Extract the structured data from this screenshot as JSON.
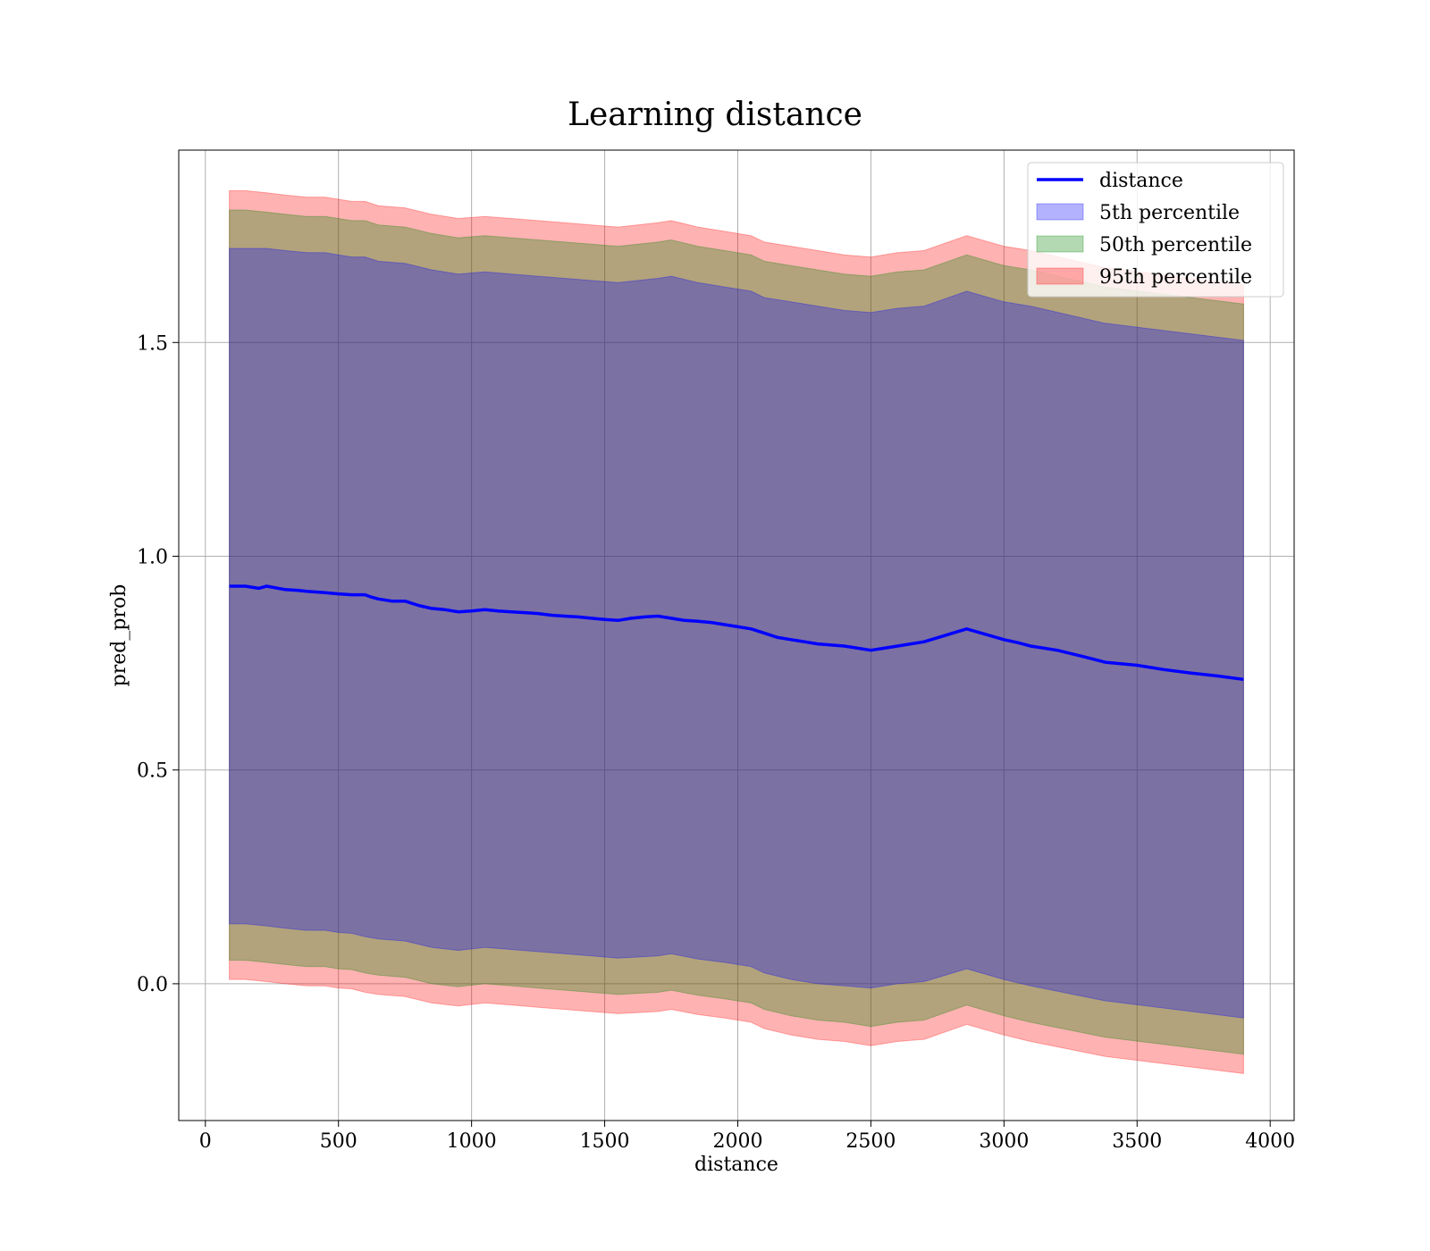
{
  "chart_data": {
    "type": "line",
    "title": "Learning distance",
    "xlabel": "distance",
    "ylabel": "pred_prob",
    "xlim": [
      -100,
      4090
    ],
    "ylim": [
      -0.32,
      1.95
    ],
    "xticks": [
      0,
      500,
      1000,
      1500,
      2000,
      2500,
      3000,
      3500,
      4000
    ],
    "xtick_labels": [
      "0",
      "500",
      "1000",
      "1500",
      "2000",
      "2500",
      "3000",
      "3500",
      "4000"
    ],
    "yticks": [
      0.0,
      0.5,
      1.0,
      1.5
    ],
    "ytick_labels": [
      "0.0",
      "0.5",
      "1.0",
      "1.5"
    ],
    "grid": true,
    "legend_position": "top-right",
    "colors": {
      "line": "#0000ff",
      "p5": "#0000ff",
      "p50": "#008000",
      "p95": "#ff0000"
    },
    "series": [
      {
        "name": "distance",
        "kind": "line",
        "x": [
          90,
          150,
          200,
          230,
          300,
          350,
          380,
          450,
          500,
          550,
          600,
          620,
          650,
          700,
          750,
          800,
          850,
          900,
          950,
          1000,
          1050,
          1100,
          1150,
          1200,
          1250,
          1300,
          1350,
          1400,
          1450,
          1500,
          1550,
          1600,
          1650,
          1700,
          1750,
          1800,
          1850,
          1900,
          1950,
          2000,
          2050,
          2100,
          2150,
          2200,
          2250,
          2300,
          2400,
          2500,
          2550,
          2600,
          2650,
          2700,
          2860,
          3000,
          3050,
          3100,
          3200,
          3300,
          3380,
          3500,
          3600,
          3700,
          3800,
          3900
        ],
        "y": [
          0.93,
          0.93,
          0.925,
          0.93,
          0.922,
          0.92,
          0.918,
          0.915,
          0.912,
          0.91,
          0.91,
          0.905,
          0.9,
          0.895,
          0.895,
          0.885,
          0.878,
          0.875,
          0.87,
          0.872,
          0.875,
          0.872,
          0.87,
          0.868,
          0.866,
          0.862,
          0.86,
          0.858,
          0.855,
          0.852,
          0.85,
          0.855,
          0.858,
          0.86,
          0.855,
          0.85,
          0.848,
          0.845,
          0.84,
          0.835,
          0.83,
          0.82,
          0.81,
          0.805,
          0.8,
          0.795,
          0.79,
          0.78,
          0.785,
          0.79,
          0.795,
          0.8,
          0.83,
          0.805,
          0.798,
          0.79,
          0.78,
          0.765,
          0.752,
          0.745,
          0.735,
          0.727,
          0.72,
          0.712
        ]
      },
      {
        "name": "5th percentile",
        "kind": "band",
        "x": [
          90,
          150,
          230,
          300,
          380,
          450,
          500,
          550,
          600,
          650,
          750,
          850,
          950,
          1050,
          1150,
          1250,
          1350,
          1450,
          1550,
          1700,
          1750,
          1850,
          1950,
          2050,
          2100,
          2200,
          2300,
          2400,
          2500,
          2600,
          2700,
          2860,
          3000,
          3100,
          3380,
          3900
        ],
        "lower": [
          0.14,
          0.14,
          0.135,
          0.13,
          0.125,
          0.125,
          0.12,
          0.118,
          0.11,
          0.105,
          0.1,
          0.085,
          0.078,
          0.085,
          0.08,
          0.075,
          0.07,
          0.065,
          0.06,
          0.065,
          0.07,
          0.058,
          0.05,
          0.04,
          0.025,
          0.01,
          0.0,
          -0.005,
          -0.01,
          0.0,
          0.005,
          0.035,
          0.01,
          -0.005,
          -0.04,
          -0.08
        ],
        "upper": [
          1.72,
          1.72,
          1.72,
          1.715,
          1.71,
          1.71,
          1.705,
          1.7,
          1.7,
          1.69,
          1.685,
          1.67,
          1.66,
          1.665,
          1.66,
          1.655,
          1.65,
          1.645,
          1.64,
          1.65,
          1.655,
          1.64,
          1.63,
          1.62,
          1.605,
          1.595,
          1.585,
          1.575,
          1.57,
          1.58,
          1.585,
          1.62,
          1.595,
          1.585,
          1.545,
          1.505
        ]
      },
      {
        "name": "50th percentile",
        "kind": "band",
        "x": [
          90,
          150,
          230,
          300,
          380,
          450,
          500,
          550,
          600,
          650,
          750,
          850,
          950,
          1050,
          1150,
          1250,
          1350,
          1450,
          1550,
          1700,
          1750,
          1850,
          1950,
          2050,
          2100,
          2200,
          2300,
          2400,
          2500,
          2600,
          2700,
          2860,
          3000,
          3100,
          3380,
          3900
        ],
        "lower": [
          0.055,
          0.055,
          0.05,
          0.045,
          0.04,
          0.04,
          0.035,
          0.033,
          0.025,
          0.02,
          0.015,
          0.0,
          -0.007,
          0.0,
          -0.005,
          -0.01,
          -0.015,
          -0.02,
          -0.025,
          -0.02,
          -0.015,
          -0.027,
          -0.035,
          -0.045,
          -0.06,
          -0.075,
          -0.085,
          -0.09,
          -0.1,
          -0.09,
          -0.085,
          -0.05,
          -0.075,
          -0.09,
          -0.125,
          -0.165
        ],
        "upper": [
          1.81,
          1.81,
          1.805,
          1.8,
          1.795,
          1.795,
          1.79,
          1.785,
          1.785,
          1.775,
          1.77,
          1.755,
          1.745,
          1.75,
          1.745,
          1.74,
          1.735,
          1.73,
          1.725,
          1.735,
          1.74,
          1.725,
          1.715,
          1.705,
          1.69,
          1.68,
          1.67,
          1.66,
          1.655,
          1.665,
          1.67,
          1.705,
          1.68,
          1.67,
          1.63,
          1.59
        ]
      },
      {
        "name": "95th percentile",
        "kind": "band",
        "x": [
          90,
          150,
          230,
          300,
          380,
          450,
          500,
          550,
          600,
          650,
          750,
          850,
          950,
          1050,
          1150,
          1250,
          1350,
          1450,
          1550,
          1700,
          1750,
          1850,
          1950,
          2050,
          2100,
          2200,
          2300,
          2400,
          2500,
          2600,
          2700,
          2860,
          3000,
          3100,
          3380,
          3900
        ],
        "lower": [
          0.01,
          0.01,
          0.005,
          0.0,
          -0.005,
          -0.005,
          -0.01,
          -0.012,
          -0.02,
          -0.025,
          -0.03,
          -0.045,
          -0.052,
          -0.045,
          -0.05,
          -0.055,
          -0.06,
          -0.065,
          -0.07,
          -0.065,
          -0.06,
          -0.072,
          -0.08,
          -0.09,
          -0.105,
          -0.12,
          -0.13,
          -0.135,
          -0.145,
          -0.135,
          -0.13,
          -0.095,
          -0.12,
          -0.135,
          -0.17,
          -0.21
        ],
        "upper": [
          1.855,
          1.855,
          1.85,
          1.845,
          1.84,
          1.84,
          1.835,
          1.83,
          1.83,
          1.82,
          1.815,
          1.8,
          1.79,
          1.795,
          1.79,
          1.785,
          1.78,
          1.775,
          1.77,
          1.78,
          1.785,
          1.77,
          1.76,
          1.75,
          1.735,
          1.725,
          1.715,
          1.705,
          1.7,
          1.71,
          1.715,
          1.75,
          1.725,
          1.715,
          1.675,
          1.635
        ]
      }
    ]
  }
}
